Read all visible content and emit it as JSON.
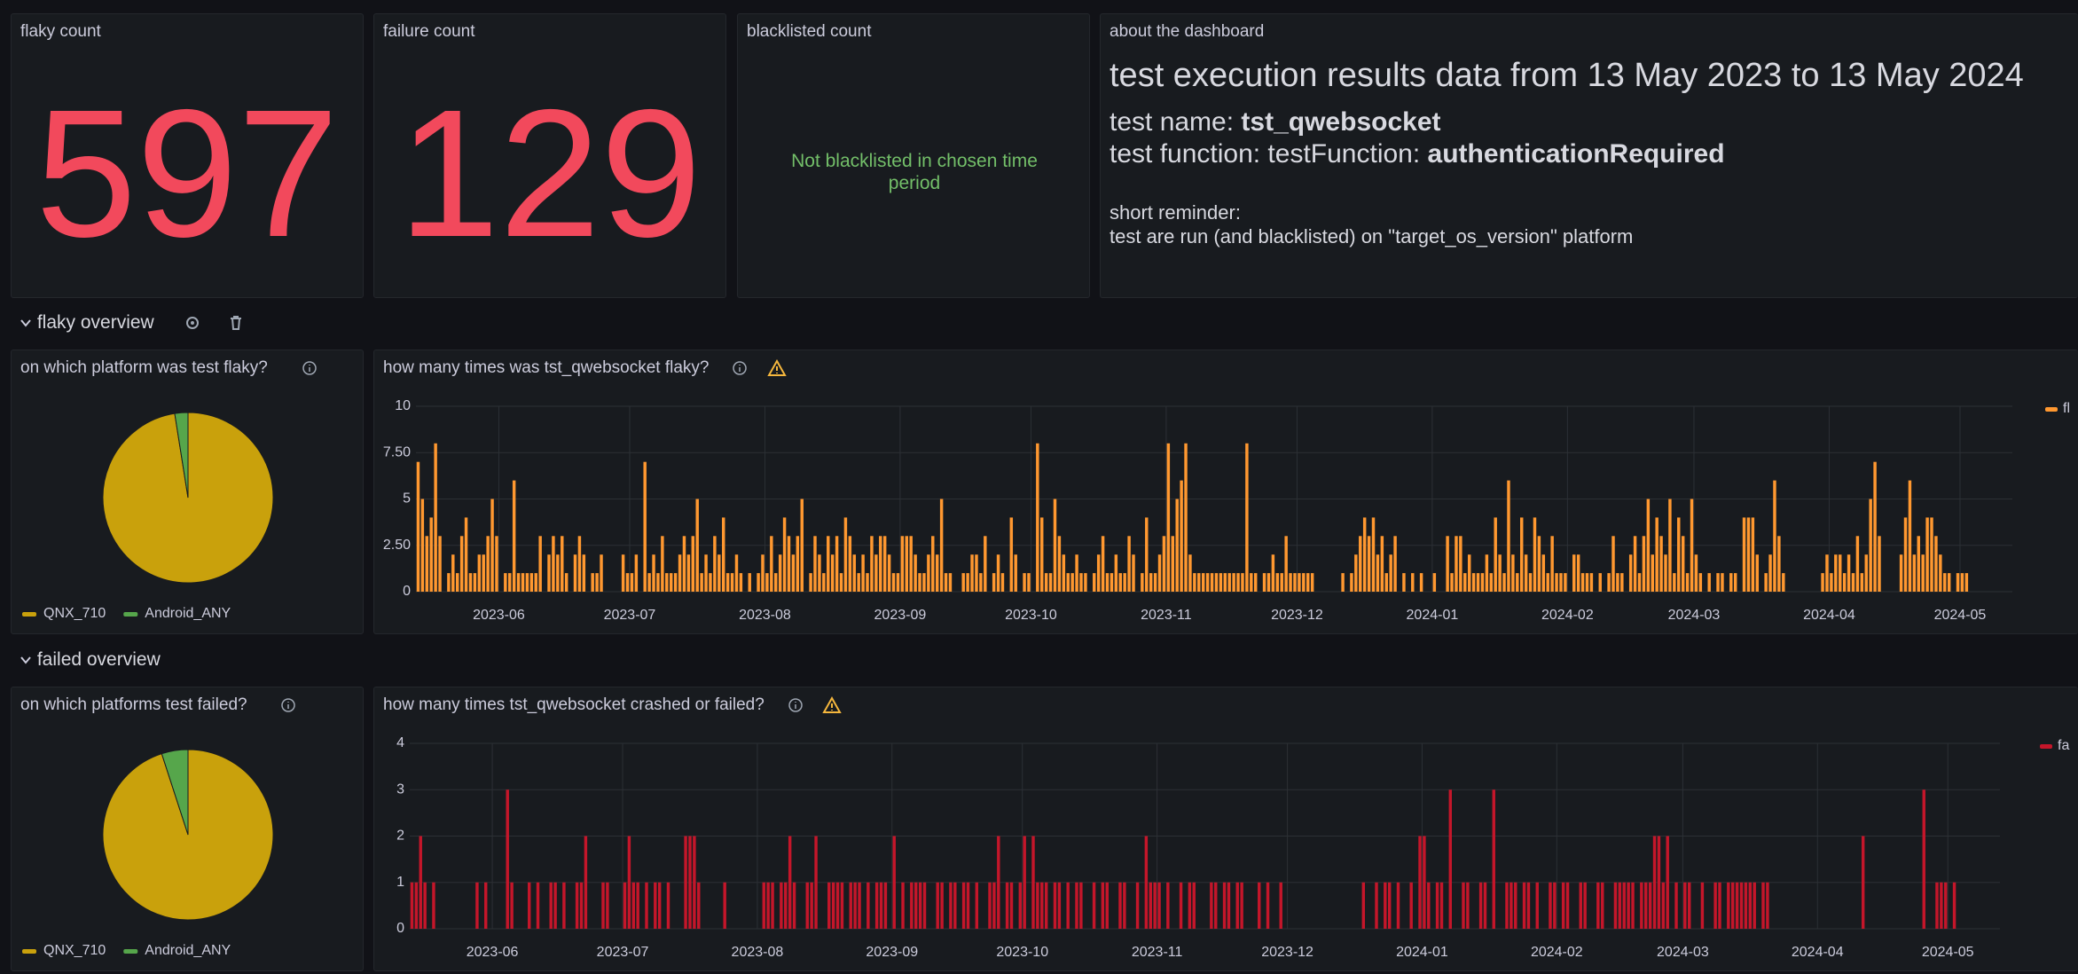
{
  "stats": [
    {
      "title": "flaky count",
      "value": 597
    },
    {
      "title": "failure count",
      "value": 129
    },
    {
      "title": "blacklisted count",
      "text": "Not blacklisted in chosen time period"
    }
  ],
  "about": {
    "title": "about the dashboard",
    "heading": "test execution results data from 13 May 2023 to 13 May 2024",
    "name_label": "test name:",
    "name": "tst_qwebsocket",
    "function_label": "test function: testFunction:",
    "function": "authenticationRequired",
    "reminder_label": "short reminder:",
    "reminder": "test are run (and blacklisted) on \"target_os_version\" platform"
  },
  "rows": [
    "flaky overview",
    "failed overview"
  ],
  "chart_data": [
    {
      "type": "pie",
      "title": "on which platform was test flaky?",
      "categories": [
        "QNX_710",
        "Android_ANY"
      ],
      "values": [
        97.5,
        2.5
      ],
      "colors": [
        "#c9a10c",
        "#56a64b"
      ]
    },
    {
      "type": "bar",
      "title": "how many times was tst_qwebsocket flaky?",
      "series": [
        {
          "name": "fl",
          "color": "#ff9830",
          "values": [
            7,
            5,
            3,
            4,
            8,
            3,
            0,
            1,
            2,
            1,
            3,
            4,
            1,
            1,
            2,
            2,
            3,
            5,
            3,
            0,
            1,
            1,
            6,
            1,
            1,
            1,
            1,
            1,
            3,
            0,
            2,
            3,
            2,
            3,
            1,
            0,
            2,
            3,
            2,
            0,
            1,
            1,
            2,
            0,
            0,
            0,
            0,
            2,
            1,
            1,
            2,
            0,
            7,
            1,
            2,
            1,
            3,
            1,
            1,
            1,
            2,
            3,
            2,
            3,
            5,
            1,
            2,
            1,
            3,
            2,
            4,
            1,
            1,
            2,
            1,
            0,
            1,
            0,
            1,
            2,
            1,
            3,
            1,
            2,
            4,
            3,
            2,
            3,
            5,
            0,
            1,
            3,
            2,
            1,
            3,
            2,
            3,
            1,
            4,
            3,
            2,
            1,
            2,
            1,
            3,
            2,
            3,
            3,
            2,
            1,
            1,
            3,
            3,
            3,
            2,
            1,
            1,
            2,
            3,
            2,
            5,
            1,
            1,
            0,
            0,
            1,
            1,
            2,
            2,
            1,
            3,
            0,
            1,
            2,
            1,
            0,
            4,
            2,
            0,
            1,
            1,
            0,
            8,
            4,
            1,
            1,
            5,
            3,
            2,
            1,
            1,
            2,
            1,
            1,
            0,
            1,
            2,
            3,
            1,
            1,
            2,
            1,
            1,
            3,
            2,
            0,
            1,
            4,
            1,
            1,
            2,
            3,
            8,
            3,
            5,
            6,
            8,
            2,
            1,
            1,
            1,
            1,
            1,
            1,
            1,
            1,
            1,
            1,
            1,
            1,
            8,
            1,
            1,
            0,
            1,
            1,
            2,
            1,
            1,
            3,
            1,
            1,
            1,
            1,
            1,
            1,
            0,
            0,
            0,
            0,
            0,
            0,
            1,
            0,
            1,
            2,
            3,
            4,
            3,
            4,
            2,
            3,
            1,
            2,
            3,
            0,
            1,
            0,
            1,
            0,
            1,
            0,
            0,
            1,
            0,
            0,
            3,
            1,
            3,
            3,
            1,
            2,
            1,
            1,
            1,
            2,
            1,
            4,
            2,
            1,
            6,
            2,
            1,
            4,
            2,
            1,
            4,
            3,
            2,
            1,
            3,
            1,
            1,
            1,
            0,
            2,
            2,
            1,
            1,
            1,
            0,
            1,
            0,
            1,
            3,
            1,
            1,
            0,
            2,
            3,
            1,
            3,
            5,
            2,
            4,
            3,
            2,
            5,
            1,
            4,
            3,
            1,
            5,
            2,
            1,
            0,
            1,
            0,
            1,
            1,
            0,
            1,
            1,
            0,
            4,
            4,
            4,
            2,
            0,
            1,
            2,
            6,
            3,
            1,
            0,
            0,
            0,
            0,
            0,
            0,
            0,
            0,
            1,
            2,
            1,
            2,
            2,
            1,
            2,
            1,
            3,
            1,
            2,
            5,
            7,
            3,
            0,
            0,
            0,
            0,
            2,
            4,
            6,
            2,
            3,
            2,
            4,
            4,
            3,
            2,
            1,
            1,
            0,
            1,
            1,
            1,
            0,
            0,
            0,
            0,
            0,
            0,
            0,
            0,
            0,
            0
          ]
        }
      ],
      "xlim": [
        0,
        366
      ],
      "xticks": [
        {
          "value": 19,
          "label": "2023-06"
        },
        {
          "value": 49,
          "label": "2023-07"
        },
        {
          "value": 80,
          "label": "2023-08"
        },
        {
          "value": 111,
          "label": "2023-09"
        },
        {
          "value": 141,
          "label": "2023-10"
        },
        {
          "value": 172,
          "label": "2023-11"
        },
        {
          "value": 202,
          "label": "2023-12"
        },
        {
          "value": 233,
          "label": "2024-01"
        },
        {
          "value": 264,
          "label": "2024-02"
        },
        {
          "value": 293,
          "label": "2024-03"
        },
        {
          "value": 324,
          "label": "2024-04"
        },
        {
          "value": 354,
          "label": "2024-05"
        }
      ],
      "ylim": [
        0,
        10
      ],
      "yticks": [
        0,
        {
          "value": 2.5,
          "label": "2.50"
        },
        5,
        {
          "value": 7.5,
          "label": "7.50"
        },
        10
      ],
      "grid": true
    },
    {
      "type": "pie",
      "title": "on which platforms test failed?",
      "categories": [
        "QNX_710",
        "Android_ANY"
      ],
      "values": [
        95,
        5
      ],
      "colors": [
        "#c9a10c",
        "#56a64b"
      ]
    },
    {
      "type": "bar",
      "title": "how many times tst_qwebsocket crashed or failed?",
      "series": [
        {
          "name": "fa",
          "color": "#c4162a",
          "values": [
            1,
            1,
            2,
            1,
            0,
            1,
            0,
            0,
            0,
            0,
            0,
            0,
            0,
            0,
            0,
            1,
            0,
            1,
            0,
            0,
            0,
            0,
            3,
            1,
            0,
            0,
            0,
            1,
            0,
            1,
            0,
            0,
            1,
            1,
            0,
            1,
            0,
            0,
            1,
            1,
            2,
            0,
            0,
            0,
            1,
            1,
            0,
            0,
            0,
            1,
            2,
            1,
            1,
            0,
            1,
            0,
            1,
            1,
            0,
            1,
            0,
            0,
            0,
            2,
            2,
            2,
            1,
            0,
            0,
            0,
            0,
            0,
            1,
            0,
            0,
            0,
            0,
            0,
            0,
            0,
            0,
            1,
            1,
            1,
            0,
            1,
            1,
            2,
            1,
            0,
            0,
            1,
            1,
            2,
            0,
            0,
            1,
            1,
            1,
            1,
            0,
            1,
            1,
            1,
            0,
            1,
            0,
            1,
            1,
            1,
            0,
            2,
            0,
            1,
            0,
            1,
            1,
            1,
            1,
            0,
            0,
            1,
            1,
            0,
            1,
            1,
            0,
            1,
            1,
            0,
            1,
            0,
            0,
            1,
            1,
            2,
            0,
            1,
            1,
            0,
            1,
            2,
            0,
            2,
            1,
            1,
            1,
            0,
            1,
            1,
            0,
            1,
            0,
            1,
            1,
            0,
            0,
            1,
            0,
            1,
            1,
            0,
            0,
            1,
            1,
            0,
            0,
            1,
            0,
            2,
            1,
            1,
            1,
            0,
            1,
            0,
            0,
            1,
            0,
            1,
            1,
            0,
            0,
            0,
            1,
            1,
            0,
            1,
            1,
            0,
            1,
            1,
            0,
            0,
            0,
            1,
            0,
            1,
            0,
            0,
            1,
            0,
            0,
            0,
            0,
            0,
            0,
            0,
            0,
            0,
            0,
            0,
            0,
            0,
            0,
            0,
            0,
            0,
            0,
            1,
            0,
            0,
            1,
            0,
            1,
            1,
            0,
            1,
            0,
            0,
            1,
            0,
            2,
            2,
            1,
            0,
            1,
            1,
            0,
            3,
            0,
            0,
            1,
            1,
            0,
            0,
            1,
            1,
            0,
            3,
            0,
            0,
            1,
            1,
            1,
            0,
            1,
            1,
            0,
            1,
            0,
            0,
            1,
            1,
            0,
            1,
            1,
            0,
            0,
            1,
            1,
            0,
            0,
            1,
            1,
            0,
            0,
            1,
            1,
            1,
            1,
            1,
            0,
            1,
            1,
            1,
            2,
            2,
            1,
            2,
            0,
            1,
            0,
            1,
            1,
            0,
            0,
            1,
            0,
            0,
            1,
            1,
            0,
            1,
            1,
            1,
            1,
            1,
            1,
            1,
            0,
            1,
            1,
            0,
            0,
            0,
            0,
            0,
            0,
            0,
            0,
            0,
            0,
            0,
            0,
            0,
            0,
            0,
            0,
            0,
            0,
            0,
            0,
            0,
            2,
            0,
            0,
            0,
            0,
            0,
            0,
            0,
            0,
            0,
            0,
            0,
            0,
            0,
            3,
            0,
            0,
            1,
            1,
            1,
            0,
            1,
            0,
            0,
            0,
            0,
            0,
            0,
            0,
            0,
            0,
            0
          ]
        }
      ],
      "xlim": [
        0,
        366
      ],
      "xticks": [
        {
          "value": 19,
          "label": "2023-06"
        },
        {
          "value": 49,
          "label": "2023-07"
        },
        {
          "value": 80,
          "label": "2023-08"
        },
        {
          "value": 111,
          "label": "2023-09"
        },
        {
          "value": 141,
          "label": "2023-10"
        },
        {
          "value": 172,
          "label": "2023-11"
        },
        {
          "value": 202,
          "label": "2023-12"
        },
        {
          "value": 233,
          "label": "2024-01"
        },
        {
          "value": 264,
          "label": "2024-02"
        },
        {
          "value": 293,
          "label": "2024-03"
        },
        {
          "value": 324,
          "label": "2024-04"
        },
        {
          "value": 354,
          "label": "2024-05"
        }
      ],
      "ylim": [
        0,
        4
      ],
      "yticks": [
        0,
        1,
        2,
        3,
        4
      ],
      "grid": true
    }
  ]
}
